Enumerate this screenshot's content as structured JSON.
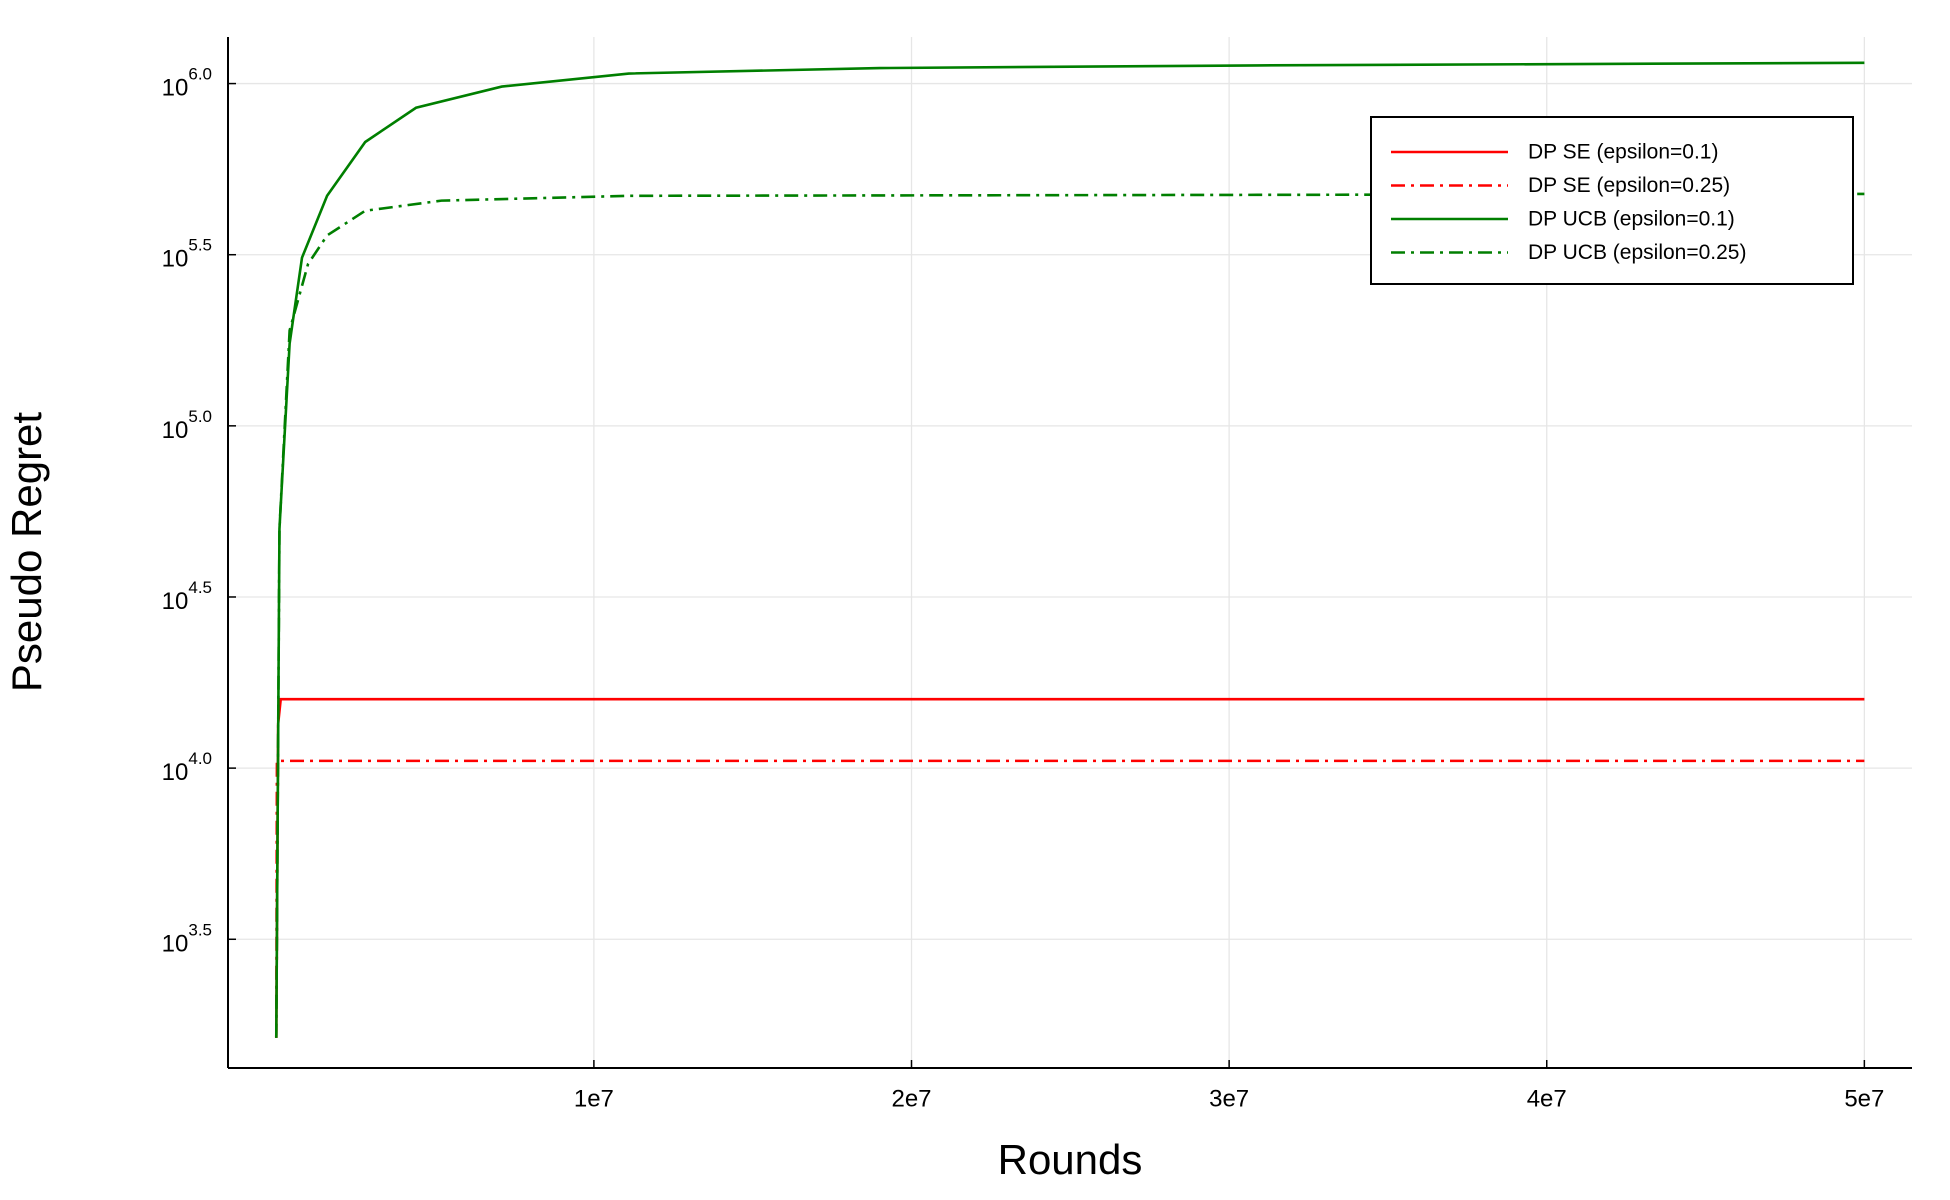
{
  "chart_data": {
    "type": "line",
    "xlabel": "Rounds",
    "ylabel": "Pseudo Regret",
    "xlim": [
      -1520000,
      51500000
    ],
    "xticks": [
      {
        "value": 10000000,
        "label": "1e7"
      },
      {
        "value": 20000000,
        "label": "2e7"
      },
      {
        "value": 30000000,
        "label": "3e7"
      },
      {
        "value": 40000000,
        "label": "4e7"
      },
      {
        "value": 50000000,
        "label": "5e7"
      }
    ],
    "ylim": [
      1330,
      1368000
    ],
    "log_y": true,
    "grid": true,
    "yticks": [
      {
        "value": 3162,
        "label": "10",
        "exponent": "3.5"
      },
      {
        "value": 10000,
        "label": "10",
        "exponent": "4.0"
      },
      {
        "value": 31623,
        "label": "10",
        "exponent": "4.5"
      },
      {
        "value": 100000,
        "label": "10",
        "exponent": "5.0"
      },
      {
        "value": 316228,
        "label": "10",
        "exponent": "5.5"
      },
      {
        "value": 1000000,
        "label": "10",
        "exponent": "6.0"
      }
    ],
    "legend": "upper right",
    "series": [
      {
        "name": "DP SE (epsilon=0.1)",
        "color": "#ff0000",
        "style": "solid",
        "x": [
          0,
          60000,
          140000,
          50000000
        ],
        "values": [
          1630,
          13500,
          15900,
          15900
        ]
      },
      {
        "name": "DP SE (epsilon=0.25)",
        "color": "#ff0000",
        "style": "dashdot",
        "x": [
          0,
          20000,
          50000000
        ],
        "values": [
          1630,
          10500,
          10500
        ]
      },
      {
        "name": "DP UCB (epsilon=0.1)",
        "color": "#007f00",
        "style": "solid",
        "x": [
          0,
          100000,
          420000,
          810000,
          1600000,
          2800000,
          4400000,
          7100000,
          11100000,
          19000000,
          30900000,
          50000000
        ],
        "values": [
          1630,
          50000,
          174000,
          310000,
          470000,
          675000,
          850000,
          980000,
          1070000,
          1110000,
          1130000,
          1150000
        ]
      },
      {
        "name": "DP UCB (epsilon=0.25)",
        "color": "#007f00",
        "style": "dashdot",
        "x": [
          0,
          100000,
          420000,
          1000000,
          1600000,
          2800000,
          5200000,
          11100000,
          30900000,
          50000000
        ],
        "values": [
          1630,
          50000,
          190000,
          297000,
          360000,
          425000,
          455000,
          470000,
          473000,
          476000
        ]
      }
    ]
  }
}
